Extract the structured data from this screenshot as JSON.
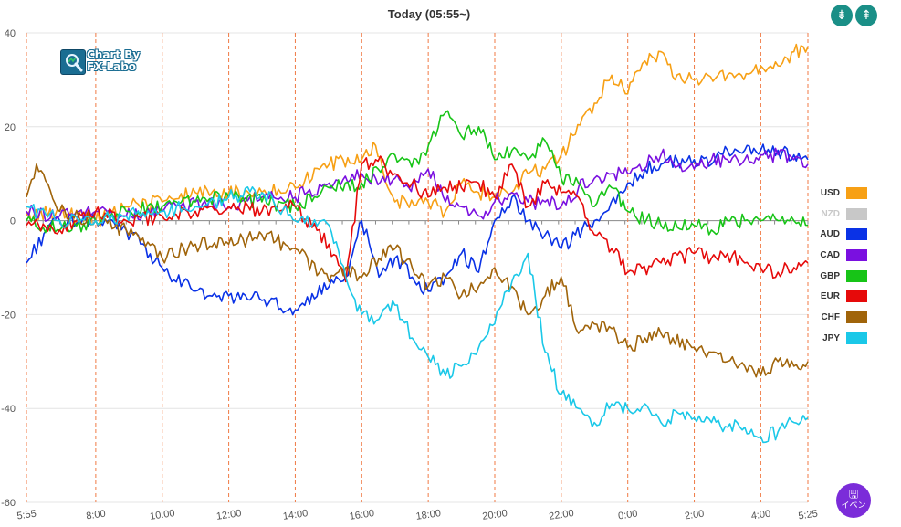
{
  "header": {
    "title": "Today  (05:55~)",
    "collapse_icon": "compress-vertical-icon",
    "expand_icon": "expand-vertical-icon"
  },
  "logo": {
    "line1": "Chart By",
    "line2": "FX-Labo"
  },
  "event_button": {
    "icon": "save-icon",
    "label": "イベン"
  },
  "chart_data": {
    "type": "line",
    "title": "Today  (05:55~)",
    "xlabel": "",
    "ylabel": "",
    "x_ticks": [
      "5:55",
      "8:00",
      "10:00",
      "12:00",
      "14:00",
      "16:00",
      "18:00",
      "20:00",
      "22:00",
      "0:00",
      "2:00",
      "4:00",
      "5:25"
    ],
    "x_range_hours": [
      0,
      23.5
    ],
    "ylim": [
      -60,
      40
    ],
    "y_ticks": [
      40,
      20,
      0,
      -20,
      -40,
      -60
    ],
    "grid": "vertical dashed at hour ticks, horizontal at 20 intervals",
    "legend_position": "right",
    "series": [
      {
        "name": "USD",
        "color": "#f7a015",
        "visible": true,
        "x": [
          0,
          1,
          2.08,
          3,
          4.08,
          5.08,
          6.08,
          7.08,
          8.08,
          9.1,
          10.08,
          10.5,
          11.08,
          12.08,
          12.6,
          13.08,
          13.6,
          14.08,
          14.6,
          15.08,
          15.6,
          16.08,
          17.08,
          17.6,
          18.08,
          18.6,
          19.08,
          19.5,
          20.08,
          20.5,
          21.08,
          21.5,
          22.08,
          22.6,
          23.08,
          23.5
        ],
        "y": [
          1,
          2,
          0,
          3,
          4,
          6,
          6,
          6,
          7,
          12,
          13,
          16,
          4,
          4,
          2,
          8,
          6,
          5,
          6,
          10,
          11,
          14,
          25,
          31,
          27,
          34,
          36,
          30,
          30,
          31,
          31,
          31,
          33,
          33,
          36,
          37
        ]
      },
      {
        "name": "NZD",
        "color": "#c8c8c8",
        "visible": false,
        "x": [],
        "y": []
      },
      {
        "name": "AUD",
        "color": "#0a32e6",
        "visible": true,
        "x": [
          0,
          0.6,
          1,
          2.08,
          3,
          4.08,
          5.08,
          6.08,
          7.08,
          8.08,
          9.1,
          9.6,
          10.08,
          10.6,
          11.08,
          11.6,
          12.08,
          12.6,
          13.08,
          13.6,
          14.08,
          14.6,
          15.08,
          15.6,
          16.08,
          17.08,
          18.08,
          18.6,
          19.08,
          20.08,
          20.6,
          21.08,
          21.6,
          22.08,
          22.6,
          23.08,
          23.5
        ],
        "y": [
          -9,
          -2,
          0,
          0,
          -2,
          -10,
          -15,
          -16,
          -17,
          -19,
          -14,
          -12,
          0,
          -12,
          -8,
          -12,
          -15,
          -12,
          -7,
          -11,
          0,
          5,
          0,
          -3,
          -6,
          0,
          8,
          11,
          12,
          13,
          12,
          15,
          15,
          15,
          15,
          14,
          13
        ]
      },
      {
        "name": "CAD",
        "color": "#7a10e0",
        "visible": true,
        "x": [
          0,
          1,
          2.08,
          3,
          4.08,
          5.08,
          6.08,
          7.08,
          8.08,
          9.1,
          10.08,
          10.5,
          11.08,
          11.5,
          12.08,
          12.6,
          13.08,
          13.6,
          14.08,
          14.6,
          15.08,
          15.6,
          16.08,
          16.6,
          17.08,
          17.6,
          18.08,
          19.08,
          20.08,
          20.6,
          21.08,
          21.6,
          22.08,
          22.6,
          23.08,
          23.5
        ],
        "y": [
          2,
          1,
          2,
          1,
          2,
          4,
          3,
          5,
          5,
          8,
          10,
          9,
          9,
          7,
          11,
          4,
          3,
          1,
          4,
          6,
          4,
          4,
          3,
          7,
          9,
          10,
          10,
          14,
          11,
          13,
          13,
          13,
          14,
          14,
          13,
          12
        ]
      },
      {
        "name": "GBP",
        "color": "#17c417",
        "visible": true,
        "x": [
          0,
          1,
          2.08,
          3,
          4.08,
          5.08,
          6.08,
          7.08,
          8.08,
          9.1,
          10.08,
          11.08,
          11.8,
          12.6,
          13.08,
          13.6,
          14.08,
          14.6,
          15.08,
          15.6,
          16.08,
          16.6,
          17.08,
          17.6,
          18.08,
          19.08,
          20.08,
          20.6,
          21.08,
          21.6,
          22.08,
          22.6,
          23.08,
          23.5
        ],
        "y": [
          0,
          -2,
          0,
          2,
          3,
          4,
          5,
          4,
          3,
          7,
          8,
          14,
          12,
          23,
          18,
          20,
          13,
          15,
          13,
          17,
          9,
          8,
          3,
          7,
          2,
          -1,
          -1,
          -2,
          0,
          0,
          0,
          0,
          0,
          -1
        ]
      },
      {
        "name": "EUR",
        "color": "#e60a0a",
        "visible": true,
        "x": [
          0,
          1,
          2.08,
          3,
          4.08,
          5.08,
          6.08,
          7.08,
          8.08,
          9.1,
          9.6,
          10.08,
          10.5,
          11.08,
          11.6,
          12.08,
          12.6,
          13.08,
          13.6,
          14.08,
          14.6,
          15.08,
          15.6,
          16.08,
          16.6,
          17.08,
          17.6,
          18.08,
          19.08,
          20.08,
          20.6,
          21.08,
          21.6,
          22.08,
          22.6,
          23.08,
          23.5
        ],
        "y": [
          -1,
          -2,
          2,
          0,
          1,
          2,
          3,
          2,
          3,
          -5,
          -13,
          12,
          13,
          10,
          8,
          5,
          7,
          7,
          8,
          5,
          12,
          3,
          8,
          6,
          5,
          -3,
          -6,
          -11,
          -9,
          -7,
          -8,
          -7,
          -9,
          -10,
          -11,
          -10,
          -9
        ]
      },
      {
        "name": "CHF",
        "color": "#a0640a",
        "visible": true,
        "x": [
          0,
          0.3,
          1,
          2.08,
          3,
          4.08,
          5.08,
          6.08,
          7.08,
          8.08,
          9.1,
          9.6,
          10.08,
          10.6,
          11.08,
          11.6,
          12.08,
          12.6,
          13.08,
          13.6,
          14.08,
          14.6,
          15.08,
          15.6,
          16.08,
          16.6,
          17.08,
          17.6,
          18.08,
          18.6,
          19.08,
          20.08,
          20.6,
          21.08,
          21.6,
          22.08,
          22.6,
          23.08,
          23.5
        ],
        "y": [
          5,
          12,
          2,
          0,
          -2,
          -8,
          -5,
          -5,
          -3,
          -6,
          -13,
          -10,
          -12,
          -8,
          -6,
          -10,
          -14,
          -12,
          -16,
          -14,
          -10,
          -14,
          -20,
          -16,
          -12,
          -24,
          -22,
          -23,
          -27,
          -25,
          -24,
          -27,
          -28,
          -30,
          -31,
          -33,
          -30,
          -31,
          -30
        ]
      },
      {
        "name": "JPY",
        "color": "#1ac8e8",
        "visible": true,
        "x": [
          0,
          1,
          2.08,
          3,
          4.08,
          5.08,
          6.08,
          7.08,
          8.08,
          9.1,
          9.6,
          10.08,
          10.6,
          11.08,
          11.6,
          12.08,
          12.6,
          13.08,
          13.6,
          14.08,
          14.6,
          15.08,
          15.6,
          16.08,
          16.6,
          17.08,
          17.6,
          18.08,
          18.6,
          19.08,
          19.6,
          20.08,
          20.6,
          21.08,
          21.6,
          22.08,
          22.6,
          23.08,
          23.5
        ],
        "y": [
          3,
          0,
          0,
          1,
          2,
          3,
          5,
          6,
          0,
          -1,
          -12,
          -20,
          -21,
          -18,
          -25,
          -29,
          -33,
          -31,
          -27,
          -22,
          -13,
          -7,
          -28,
          -37,
          -40,
          -43,
          -39,
          -40,
          -39,
          -43,
          -41,
          -42,
          -43,
          -44,
          -44,
          -46,
          -45,
          -43,
          -42
        ]
      }
    ]
  }
}
